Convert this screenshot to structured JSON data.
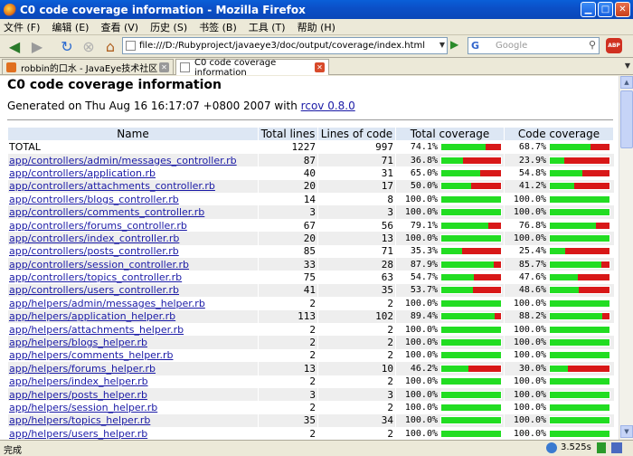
{
  "window": {
    "title": "C0 code coverage information - Mozilla Firefox"
  },
  "menu": [
    "文件 (F)",
    "编辑 (E)",
    "查看 (V)",
    "历史 (S)",
    "书签 (B)",
    "工具 (T)",
    "帮助 (H)"
  ],
  "toolbar": {
    "url": "file:///D:/Rubyproject/javaeye3/doc/output/coverage/index.html",
    "search_placeholder": "Google",
    "abp_label": "ABP"
  },
  "tabs": [
    {
      "label": "robbin的口水 - JavaEye技术社区",
      "active": false
    },
    {
      "label": "C0 code coverage information",
      "active": true
    }
  ],
  "page": {
    "title": "C0 code coverage information",
    "generated_prefix": "Generated on Thu Aug 16 16:17:07 +0800 2007 with ",
    "generated_link": "rcov 0.8.0"
  },
  "table": {
    "headers": [
      "Name",
      "Total lines",
      "Lines of code",
      "Total coverage",
      "Code coverage"
    ],
    "rows": [
      {
        "name": "TOTAL",
        "link": false,
        "total": 1227,
        "loc": 997,
        "tcov": "74.1%",
        "ccov": "68.7%"
      },
      {
        "name": "app/controllers/admin/messages_controller.rb",
        "link": true,
        "total": 87,
        "loc": 71,
        "tcov": "36.8%",
        "ccov": "23.9%"
      },
      {
        "name": "app/controllers/application.rb",
        "link": true,
        "total": 40,
        "loc": 31,
        "tcov": "65.0%",
        "ccov": "54.8%"
      },
      {
        "name": "app/controllers/attachments_controller.rb",
        "link": true,
        "total": 20,
        "loc": 17,
        "tcov": "50.0%",
        "ccov": "41.2%"
      },
      {
        "name": "app/controllers/blogs_controller.rb",
        "link": true,
        "total": 14,
        "loc": 8,
        "tcov": "100.0%",
        "ccov": "100.0%"
      },
      {
        "name": "app/controllers/comments_controller.rb",
        "link": true,
        "total": 3,
        "loc": 3,
        "tcov": "100.0%",
        "ccov": "100.0%"
      },
      {
        "name": "app/controllers/forums_controller.rb",
        "link": true,
        "total": 67,
        "loc": 56,
        "tcov": "79.1%",
        "ccov": "76.8%"
      },
      {
        "name": "app/controllers/index_controller.rb",
        "link": true,
        "total": 20,
        "loc": 13,
        "tcov": "100.0%",
        "ccov": "100.0%"
      },
      {
        "name": "app/controllers/posts_controller.rb",
        "link": true,
        "total": 85,
        "loc": 71,
        "tcov": "35.3%",
        "ccov": "25.4%"
      },
      {
        "name": "app/controllers/session_controller.rb",
        "link": true,
        "total": 33,
        "loc": 28,
        "tcov": "87.9%",
        "ccov": "85.7%"
      },
      {
        "name": "app/controllers/topics_controller.rb",
        "link": true,
        "total": 75,
        "loc": 63,
        "tcov": "54.7%",
        "ccov": "47.6%"
      },
      {
        "name": "app/controllers/users_controller.rb",
        "link": true,
        "total": 41,
        "loc": 35,
        "tcov": "53.7%",
        "ccov": "48.6%"
      },
      {
        "name": "app/helpers/admin/messages_helper.rb",
        "link": true,
        "total": 2,
        "loc": 2,
        "tcov": "100.0%",
        "ccov": "100.0%"
      },
      {
        "name": "app/helpers/application_helper.rb",
        "link": true,
        "total": 113,
        "loc": 102,
        "tcov": "89.4%",
        "ccov": "88.2%"
      },
      {
        "name": "app/helpers/attachments_helper.rb",
        "link": true,
        "total": 2,
        "loc": 2,
        "tcov": "100.0%",
        "ccov": "100.0%"
      },
      {
        "name": "app/helpers/blogs_helper.rb",
        "link": true,
        "total": 2,
        "loc": 2,
        "tcov": "100.0%",
        "ccov": "100.0%"
      },
      {
        "name": "app/helpers/comments_helper.rb",
        "link": true,
        "total": 2,
        "loc": 2,
        "tcov": "100.0%",
        "ccov": "100.0%"
      },
      {
        "name": "app/helpers/forums_helper.rb",
        "link": true,
        "total": 13,
        "loc": 10,
        "tcov": "46.2%",
        "ccov": "30.0%"
      },
      {
        "name": "app/helpers/index_helper.rb",
        "link": true,
        "total": 2,
        "loc": 2,
        "tcov": "100.0%",
        "ccov": "100.0%"
      },
      {
        "name": "app/helpers/posts_helper.rb",
        "link": true,
        "total": 3,
        "loc": 3,
        "tcov": "100.0%",
        "ccov": "100.0%"
      },
      {
        "name": "app/helpers/session_helper.rb",
        "link": true,
        "total": 2,
        "loc": 2,
        "tcov": "100.0%",
        "ccov": "100.0%"
      },
      {
        "name": "app/helpers/topics_helper.rb",
        "link": true,
        "total": 35,
        "loc": 34,
        "tcov": "100.0%",
        "ccov": "100.0%"
      },
      {
        "name": "app/helpers/users_helper.rb",
        "link": true,
        "total": 2,
        "loc": 2,
        "tcov": "100.0%",
        "ccov": "100.0%"
      }
    ]
  },
  "status": {
    "text": "完成",
    "timer": "3.525s"
  },
  "colors": {
    "covered": "#22dd22",
    "uncovered": "#d81818",
    "header_bg": "#dde7f4",
    "link": "#1a1aa6"
  }
}
